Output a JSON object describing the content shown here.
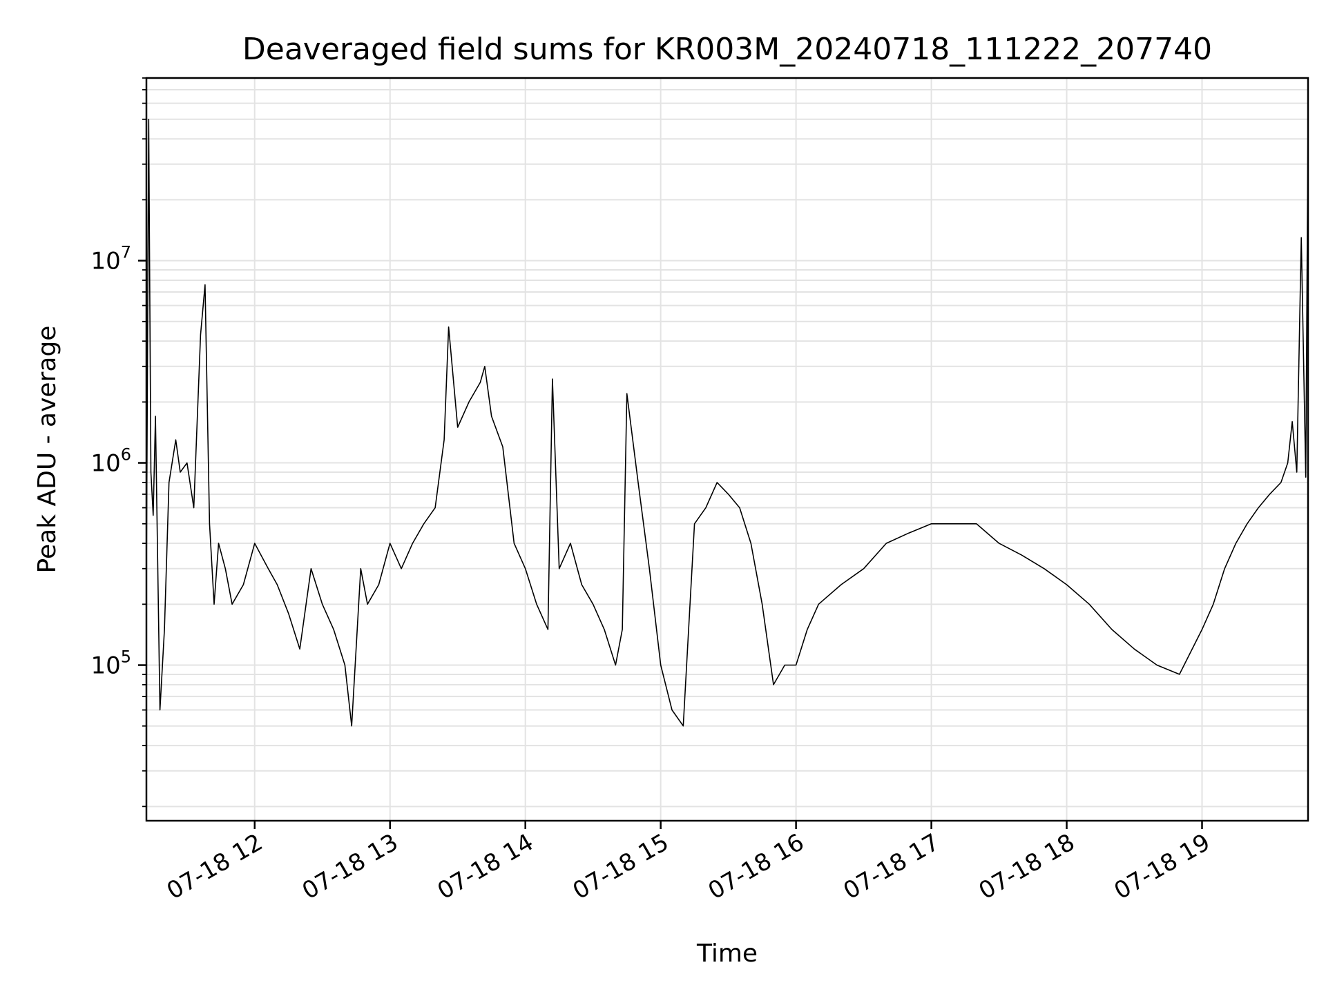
{
  "chart_data": {
    "type": "line",
    "title": "Deaveraged field sums for KR003M_20240718_111222_207740",
    "xlabel": "Time",
    "ylabel": "Peak ADU - average",
    "y_scale": "log",
    "ylim": [
      17000,
      80000000
    ],
    "xlim": [
      "2024-07-18 11:12",
      "2024-07-18 19:47"
    ],
    "x_ticks": [
      {
        "time": "2024-07-18 12:00",
        "label": "07-18 12"
      },
      {
        "time": "2024-07-18 13:00",
        "label": "07-18 13"
      },
      {
        "time": "2024-07-18 14:00",
        "label": "07-18 14"
      },
      {
        "time": "2024-07-18 15:00",
        "label": "07-18 15"
      },
      {
        "time": "2024-07-18 16:00",
        "label": "07-18 16"
      },
      {
        "time": "2024-07-18 17:00",
        "label": "07-18 17"
      },
      {
        "time": "2024-07-18 18:00",
        "label": "07-18 18"
      },
      {
        "time": "2024-07-18 19:00",
        "label": "07-18 19"
      }
    ],
    "y_ticks": [
      {
        "value": 100000,
        "base": "10",
        "exp": "5"
      },
      {
        "value": 1000000,
        "base": "10",
        "exp": "6"
      },
      {
        "value": 10000000,
        "base": "10",
        "exp": "7"
      }
    ],
    "grid": true,
    "series": [
      {
        "color": "#000000",
        "x": [
          "2024-07-18 11:12",
          "2024-07-18 11:13",
          "2024-07-18 11:14",
          "2024-07-18 11:15",
          "2024-07-18 11:16",
          "2024-07-18 11:18",
          "2024-07-18 11:20",
          "2024-07-18 11:22",
          "2024-07-18 11:25",
          "2024-07-18 11:27",
          "2024-07-18 11:30",
          "2024-07-18 11:33",
          "2024-07-18 11:36",
          "2024-07-18 11:38",
          "2024-07-18 11:40",
          "2024-07-18 11:42",
          "2024-07-18 11:44",
          "2024-07-18 11:47",
          "2024-07-18 11:50",
          "2024-07-18 11:55",
          "2024-07-18 12:00",
          "2024-07-18 12:06",
          "2024-07-18 12:10",
          "2024-07-18 12:15",
          "2024-07-18 12:20",
          "2024-07-18 12:25",
          "2024-07-18 12:30",
          "2024-07-18 12:35",
          "2024-07-18 12:40",
          "2024-07-18 12:43",
          "2024-07-18 12:47",
          "2024-07-18 12:50",
          "2024-07-18 12:55",
          "2024-07-18 13:00",
          "2024-07-18 13:05",
          "2024-07-18 13:10",
          "2024-07-18 13:15",
          "2024-07-18 13:20",
          "2024-07-18 13:24",
          "2024-07-18 13:26",
          "2024-07-18 13:30",
          "2024-07-18 13:35",
          "2024-07-18 13:40",
          "2024-07-18 13:42",
          "2024-07-18 13:45",
          "2024-07-18 13:50",
          "2024-07-18 13:55",
          "2024-07-18 14:00",
          "2024-07-18 14:05",
          "2024-07-18 14:10",
          "2024-07-18 14:12",
          "2024-07-18 14:15",
          "2024-07-18 14:20",
          "2024-07-18 14:25",
          "2024-07-18 14:30",
          "2024-07-18 14:35",
          "2024-07-18 14:40",
          "2024-07-18 14:43",
          "2024-07-18 14:45",
          "2024-07-18 14:50",
          "2024-07-18 14:55",
          "2024-07-18 15:00",
          "2024-07-18 15:05",
          "2024-07-18 15:10",
          "2024-07-18 15:15",
          "2024-07-18 15:20",
          "2024-07-18 15:25",
          "2024-07-18 15:30",
          "2024-07-18 15:35",
          "2024-07-18 15:40",
          "2024-07-18 15:45",
          "2024-07-18 15:50",
          "2024-07-18 15:55",
          "2024-07-18 16:00",
          "2024-07-18 16:05",
          "2024-07-18 16:10",
          "2024-07-18 16:20",
          "2024-07-18 16:30",
          "2024-07-18 16:40",
          "2024-07-18 16:50",
          "2024-07-18 17:00",
          "2024-07-18 17:10",
          "2024-07-18 17:20",
          "2024-07-18 17:30",
          "2024-07-18 17:40",
          "2024-07-18 17:50",
          "2024-07-18 18:00",
          "2024-07-18 18:10",
          "2024-07-18 18:20",
          "2024-07-18 18:30",
          "2024-07-18 18:40",
          "2024-07-18 18:50",
          "2024-07-18 19:00",
          "2024-07-18 19:05",
          "2024-07-18 19:10",
          "2024-07-18 19:15",
          "2024-07-18 19:20",
          "2024-07-18 19:25",
          "2024-07-18 19:30",
          "2024-07-18 19:35",
          "2024-07-18 19:38",
          "2024-07-18 19:40",
          "2024-07-18 19:42",
          "2024-07-18 19:44",
          "2024-07-18 19:46",
          "2024-07-18 19:47"
        ],
        "y": [
          270000,
          50000000,
          900000,
          550000,
          1700000,
          60000,
          150000,
          800000,
          1300000,
          900000,
          1000000,
          600000,
          4300000,
          7600000,
          500000,
          200000,
          400000,
          300000,
          200000,
          250000,
          400000,
          300000,
          250000,
          180000,
          120000,
          300000,
          200000,
          150000,
          100000,
          50000,
          300000,
          200000,
          250000,
          400000,
          300000,
          400000,
          500000,
          600000,
          1300000,
          4700000,
          1500000,
          2000000,
          2500000,
          3000000,
          1700000,
          1200000,
          400000,
          300000,
          200000,
          150000,
          2600000,
          300000,
          400000,
          250000,
          200000,
          150000,
          100000,
          150000,
          2200000,
          800000,
          300000,
          100000,
          60000,
          50000,
          500000,
          600000,
          800000,
          700000,
          600000,
          400000,
          200000,
          80000,
          100000,
          100000,
          150000,
          200000,
          250000,
          300000,
          400000,
          450000,
          500000,
          500000,
          500000,
          400000,
          350000,
          300000,
          250000,
          200000,
          150000,
          120000,
          100000,
          90000,
          150000,
          200000,
          300000,
          400000,
          500000,
          600000,
          700000,
          800000,
          1000000,
          1600000,
          900000,
          13000000,
          850000,
          50000000
        ]
      }
    ]
  }
}
